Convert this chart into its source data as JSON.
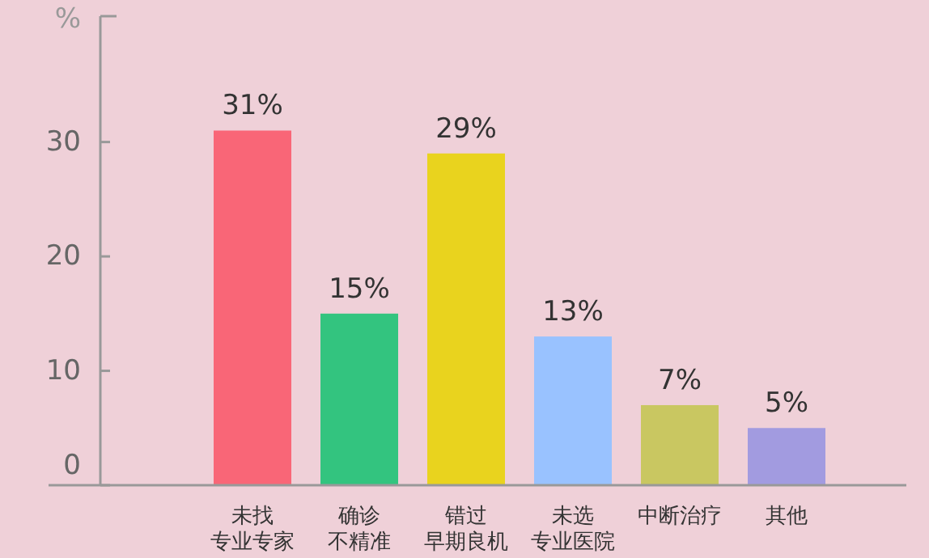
{
  "chart_data": {
    "type": "bar",
    "ylabel": "%",
    "categories": [
      "未找专业专家",
      "确诊不精准",
      "错过早期良机",
      "未选专业医院",
      "中断治疗",
      "其他"
    ],
    "values": [
      31,
      15,
      29,
      13,
      7,
      5
    ],
    "colors": [
      "#f96677",
      "#33c47f",
      "#e9d31e",
      "#99c2ff",
      "#c9c761",
      "#a29be0"
    ],
    "value_labels": [
      "31%",
      "15%",
      "29%",
      "13%",
      "7%",
      "5%"
    ],
    "ylim": [
      0,
      41
    ],
    "yticks": [
      0,
      10,
      20,
      30
    ],
    "grid": false
  }
}
